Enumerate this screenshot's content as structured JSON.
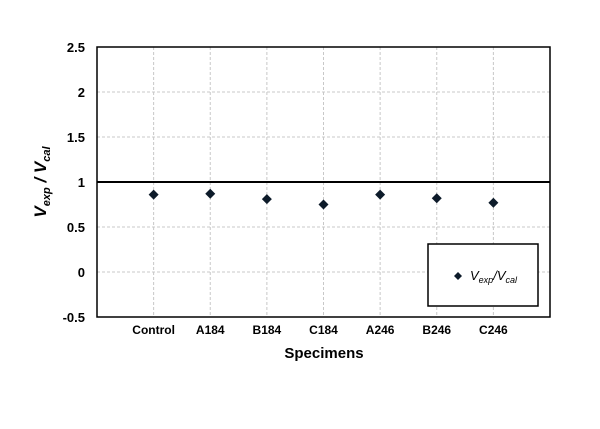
{
  "chart_data": {
    "type": "scatter",
    "categories": [
      "Control",
      "A184",
      "B184",
      "C184",
      "A246",
      "B246",
      "C246"
    ],
    "series": [
      {
        "name": "Vexp/Vcal",
        "values": [
          0.86,
          0.87,
          0.81,
          0.75,
          0.86,
          0.82,
          0.77
        ],
        "color": "#0d1b2a"
      }
    ],
    "xlabel": "Specimens",
    "ylabel": {
      "main1": "V",
      "sub1": "exp",
      "sep": " / ",
      "main2": "V",
      "sub2": "cal"
    },
    "legend": {
      "main1": "V",
      "sub1": "exp",
      "sep": "/",
      "main2": "V",
      "sub2": "cal",
      "placement": "bottom-right"
    },
    "ylim": [
      -0.5,
      2.5
    ],
    "yticks": [
      "-0.5",
      "0",
      "0.5",
      "1",
      "1.5",
      "2",
      "2.5"
    ],
    "reference_line": 1,
    "grid": true
  }
}
